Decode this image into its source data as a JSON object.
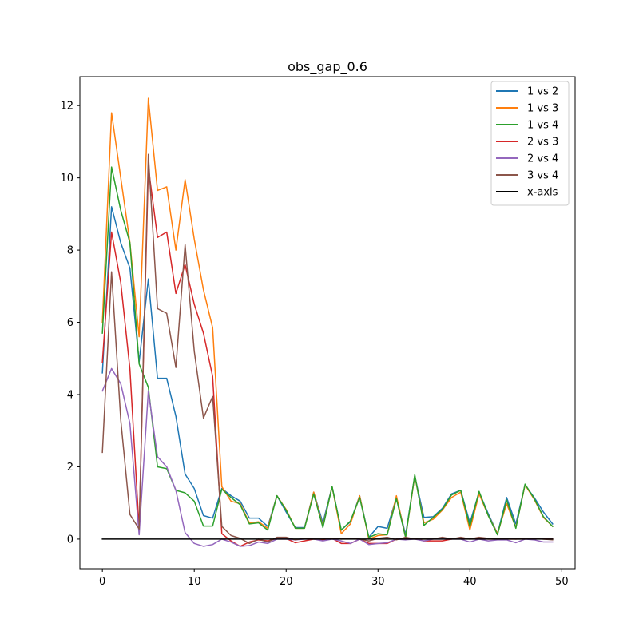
{
  "chart_data": {
    "type": "line",
    "title": "obs_gap_0.6",
    "xlabel": "",
    "ylabel": "",
    "xlim": [
      -2.45,
      51.45
    ],
    "ylim": [
      -0.82,
      12.8
    ],
    "xticks": [
      0,
      10,
      20,
      30,
      40,
      50
    ],
    "yticks": [
      0,
      2,
      4,
      6,
      8,
      10,
      12
    ],
    "grid": false,
    "legend_position": "top-right",
    "x": [
      0,
      1,
      2,
      3,
      4,
      5,
      6,
      7,
      8,
      9,
      10,
      11,
      12,
      13,
      14,
      15,
      16,
      17,
      18,
      19,
      20,
      21,
      22,
      23,
      24,
      25,
      26,
      27,
      28,
      29,
      30,
      31,
      32,
      33,
      34,
      35,
      36,
      37,
      38,
      39,
      40,
      41,
      42,
      43,
      44,
      45,
      46,
      47,
      48,
      49
    ],
    "series": [
      {
        "name": "1 vs 2",
        "color": "#1f77b4",
        "values": [
          4.6,
          9.2,
          8.2,
          7.5,
          4.9,
          7.2,
          4.45,
          4.45,
          3.4,
          1.8,
          1.4,
          0.65,
          0.58,
          1.4,
          1.2,
          1.05,
          0.58,
          0.58,
          0.35,
          1.2,
          0.75,
          0.32,
          0.32,
          1.3,
          0.45,
          1.45,
          0.25,
          0.48,
          1.2,
          0.05,
          0.35,
          0.3,
          1.15,
          0.12,
          1.75,
          0.6,
          0.62,
          0.85,
          1.25,
          1.35,
          0.45,
          1.3,
          0.7,
          0.15,
          1.15,
          0.42,
          1.5,
          1.15,
          0.75,
          0.42
        ]
      },
      {
        "name": "1 vs 3",
        "color": "#ff7f0e",
        "values": [
          6.0,
          11.8,
          10.0,
          8.2,
          5.6,
          12.2,
          9.65,
          9.75,
          8.0,
          9.95,
          8.3,
          6.9,
          5.85,
          1.45,
          1.05,
          0.98,
          0.45,
          0.48,
          0.3,
          1.2,
          0.82,
          0.3,
          0.3,
          1.3,
          0.35,
          1.45,
          0.15,
          0.42,
          1.2,
          0.0,
          0.1,
          0.12,
          1.2,
          0.05,
          1.75,
          0.45,
          0.55,
          0.8,
          1.15,
          1.3,
          0.25,
          1.25,
          0.65,
          0.15,
          0.98,
          0.32,
          1.5,
          1.1,
          0.6,
          0.35
        ]
      },
      {
        "name": "1 vs 4",
        "color": "#2ca02c",
        "values": [
          5.7,
          10.3,
          9.1,
          8.2,
          4.85,
          4.2,
          2.0,
          1.95,
          1.35,
          1.28,
          1.05,
          0.36,
          0.36,
          1.38,
          1.15,
          0.95,
          0.42,
          0.45,
          0.25,
          1.2,
          0.8,
          0.3,
          0.3,
          1.25,
          0.32,
          1.45,
          0.25,
          0.5,
          1.15,
          0.05,
          0.15,
          0.12,
          1.12,
          0.05,
          1.78,
          0.38,
          0.6,
          0.82,
          1.22,
          1.35,
          0.35,
          1.32,
          0.65,
          0.12,
          1.08,
          0.3,
          1.52,
          1.12,
          0.62,
          0.35
        ]
      },
      {
        "name": "2 vs 3",
        "color": "#d62728",
        "values": [
          4.9,
          8.5,
          7.1,
          4.7,
          0.28,
          10.3,
          8.35,
          8.5,
          6.8,
          7.6,
          6.5,
          5.7,
          4.5,
          0.15,
          -0.05,
          -0.2,
          -0.08,
          -0.02,
          -0.05,
          0.02,
          0.02,
          -0.1,
          -0.05,
          0.0,
          -0.02,
          0.02,
          -0.12,
          -0.12,
          0.0,
          -0.12,
          -0.12,
          -0.12,
          0.0,
          0.0,
          0.02,
          -0.05,
          -0.05,
          -0.05,
          0.0,
          0.02,
          0.0,
          0.02,
          0.0,
          0.0,
          0.0,
          0.0,
          0.02,
          0.02,
          0.0,
          0.0
        ]
      },
      {
        "name": "2 vs 4",
        "color": "#9467bd",
        "values": [
          4.1,
          4.72,
          4.3,
          3.2,
          0.12,
          4.1,
          2.28,
          2.0,
          1.35,
          0.18,
          -0.12,
          -0.2,
          -0.15,
          0.0,
          -0.08,
          -0.2,
          -0.18,
          -0.08,
          -0.12,
          0.0,
          0.0,
          -0.02,
          0.0,
          0.0,
          -0.05,
          0.0,
          -0.05,
          -0.12,
          0.0,
          -0.15,
          -0.12,
          -0.1,
          0.0,
          -0.02,
          0.0,
          -0.05,
          0.0,
          0.0,
          0.0,
          0.0,
          -0.08,
          0.0,
          -0.05,
          -0.02,
          -0.02,
          -0.1,
          0.0,
          -0.02,
          -0.08,
          -0.08
        ]
      },
      {
        "name": "3 vs 4",
        "color": "#8c564b",
        "values": [
          2.4,
          7.4,
          3.3,
          0.68,
          0.28,
          10.65,
          6.38,
          6.25,
          4.75,
          8.15,
          5.2,
          3.35,
          3.95,
          0.35,
          0.1,
          0.02,
          -0.12,
          0.0,
          -0.08,
          0.05,
          0.05,
          -0.02,
          0.02,
          0.0,
          0.0,
          0.02,
          0.0,
          0.02,
          0.0,
          -0.05,
          0.02,
          0.05,
          -0.02,
          0.05,
          0.0,
          0.0,
          0.0,
          0.05,
          0.0,
          0.05,
          0.0,
          0.05,
          0.02,
          0.0,
          0.02,
          0.0,
          0.0,
          0.02,
          0.0,
          -0.02
        ]
      },
      {
        "name": "x-axis",
        "color": "#000000",
        "values": [
          0,
          0,
          0,
          0,
          0,
          0,
          0,
          0,
          0,
          0,
          0,
          0,
          0,
          0,
          0,
          0,
          0,
          0,
          0,
          0,
          0,
          0,
          0,
          0,
          0,
          0,
          0,
          0,
          0,
          0,
          0,
          0,
          0,
          0,
          0,
          0,
          0,
          0,
          0,
          0,
          0,
          0,
          0,
          0,
          0,
          0,
          0,
          0,
          0,
          0
        ]
      }
    ]
  }
}
